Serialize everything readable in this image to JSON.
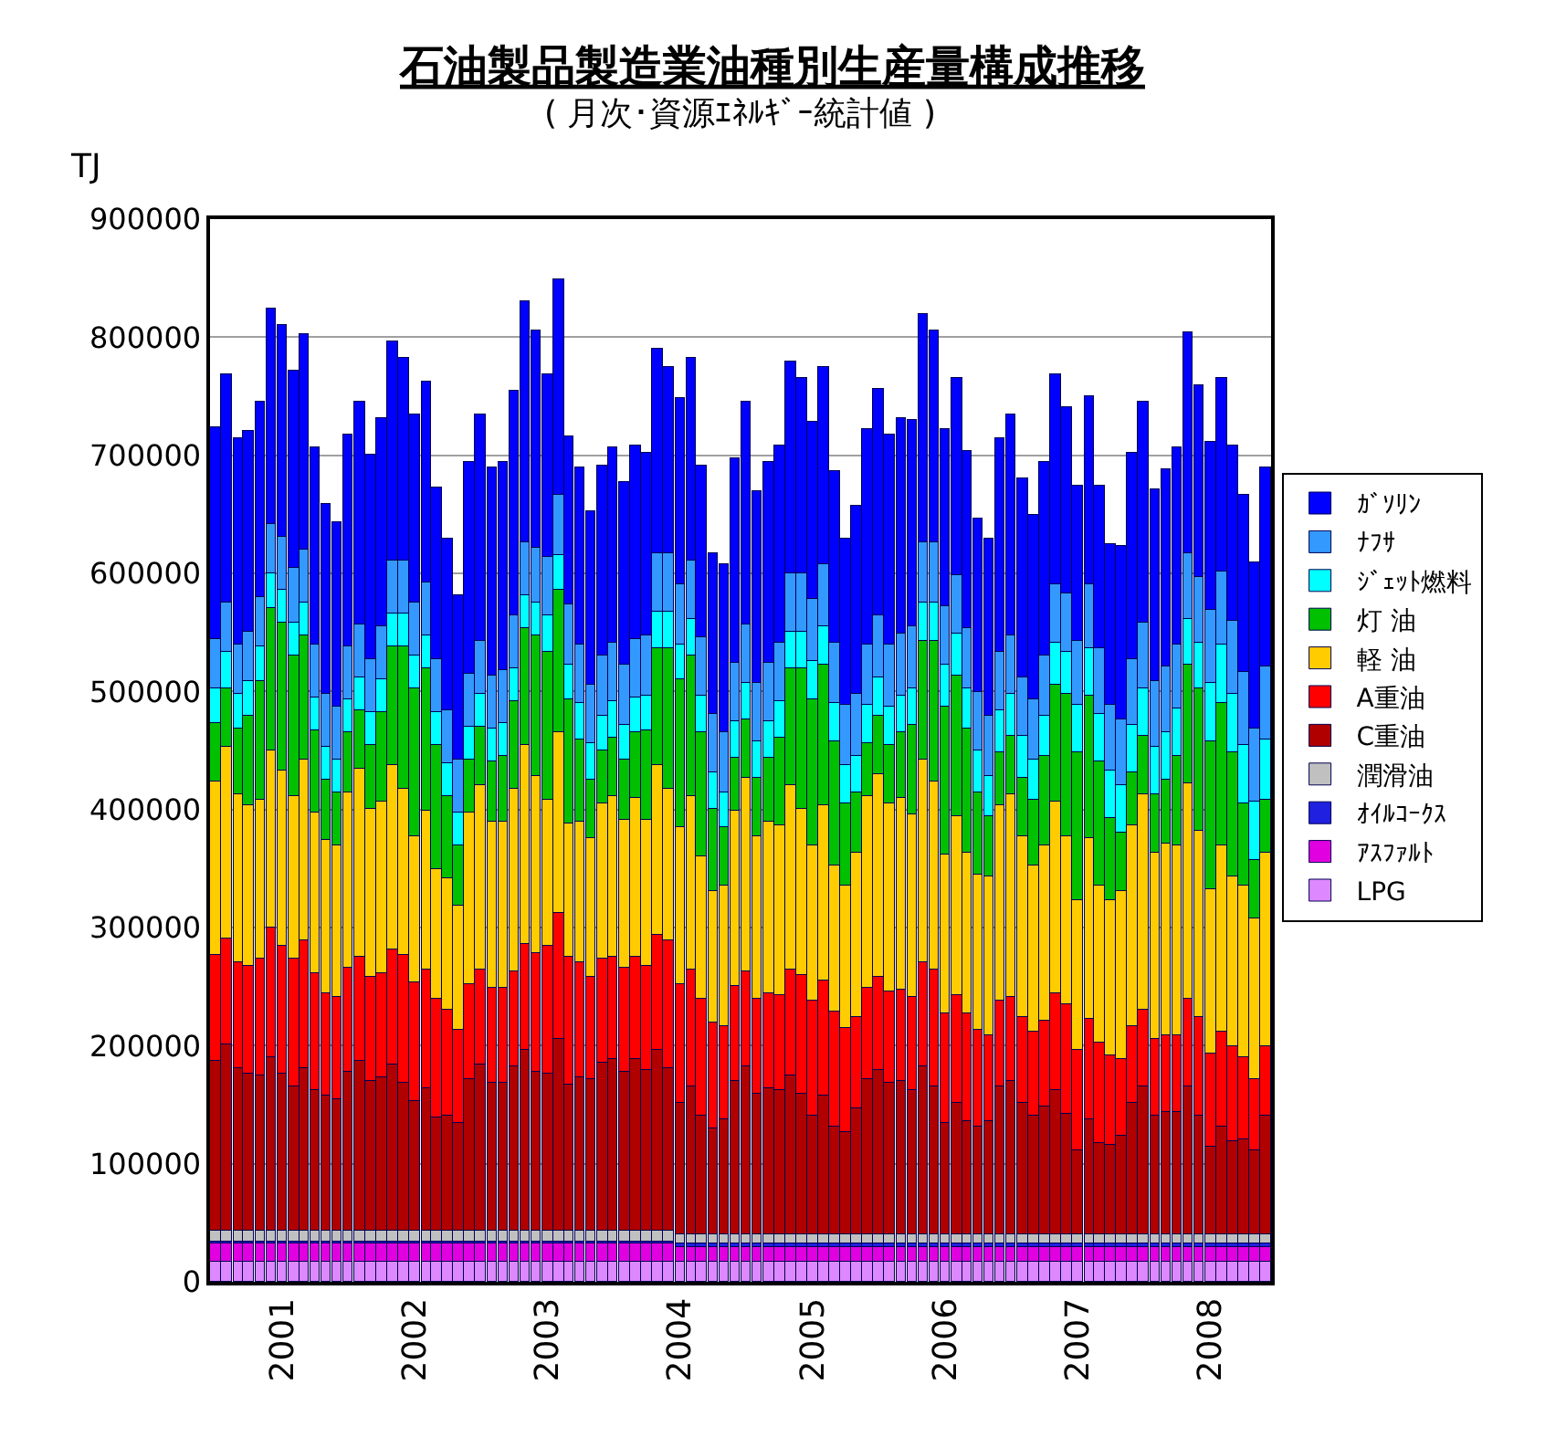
{
  "chart_data": {
    "type": "bar",
    "title": "石油製品製造業油種別生産量構成推移",
    "subtitle": "( 月次･資源ｴﾈﾙｷﾞｰ統計値 )",
    "ylabel": "TJ",
    "stacked": true,
    "legend": "right",
    "grid": "y",
    "x": [
      "2000-07",
      "2000-08",
      "2000-09",
      "2000-10",
      "2000-11",
      "2000-12",
      "2001-01",
      "2001-02",
      "2001-03",
      "2001-04",
      "2001-05",
      "2001-06",
      "2001-07",
      "2001-08",
      "2001-09",
      "2001-10",
      "2001-11",
      "2001-12",
      "2002-01",
      "2002-02",
      "2002-03",
      "2002-04",
      "2002-05",
      "2002-06",
      "2002-07",
      "2002-08",
      "2002-09",
      "2002-10",
      "2002-11",
      "2002-12",
      "2003-01",
      "2003-02",
      "2003-03",
      "2003-04",
      "2003-05",
      "2003-06",
      "2003-07",
      "2003-08",
      "2003-09",
      "2003-10",
      "2003-11",
      "2003-12",
      "2004-01",
      "2004-02",
      "2004-03",
      "2004-04",
      "2004-05",
      "2004-06",
      "2004-07",
      "2004-08",
      "2004-09",
      "2004-10",
      "2004-11",
      "2004-12",
      "2005-01",
      "2005-02",
      "2005-03",
      "2005-04",
      "2005-05",
      "2005-06",
      "2005-07",
      "2005-08",
      "2005-09",
      "2005-10",
      "2005-11",
      "2005-12",
      "2006-01",
      "2006-02",
      "2006-03",
      "2006-04",
      "2006-05",
      "2006-06",
      "2006-07",
      "2006-08",
      "2006-09",
      "2006-10",
      "2006-11",
      "2006-12",
      "2007-01",
      "2007-02",
      "2007-03",
      "2007-04",
      "2007-05",
      "2007-06",
      "2007-07",
      "2007-08",
      "2007-09",
      "2007-10",
      "2007-11",
      "2007-12",
      "2008-01",
      "2008-02",
      "2008-03",
      "2008-04",
      "2008-05",
      "2008-06"
    ],
    "xlim": [
      "2000-06-16",
      "2008-06-16"
    ],
    "xticks": [
      {
        "value": "2001-01",
        "label": "2001"
      },
      {
        "value": "2002-01",
        "label": "2002"
      },
      {
        "value": "2003-01",
        "label": "2003"
      },
      {
        "value": "2004-01",
        "label": "2004"
      },
      {
        "value": "2005-01",
        "label": "2005"
      },
      {
        "value": "2006-01",
        "label": "2006"
      },
      {
        "value": "2007-01",
        "label": "2007"
      },
      {
        "value": "2008-01",
        "label": "2008"
      }
    ],
    "ylim": [
      0,
      900000
    ],
    "yticks": [
      0,
      100000,
      200000,
      300000,
      400000,
      500000,
      600000,
      700000,
      800000,
      900000
    ],
    "series": [
      {
        "name": "LPG",
        "color": "#dd88ff",
        "values": [
          17000,
          17000,
          17000,
          17000,
          17000,
          17000,
          17000,
          17000,
          17000,
          17000,
          17000,
          17000,
          17000,
          17000,
          17000,
          17000,
          17000,
          17000,
          17000,
          17000,
          17000,
          17000,
          17000,
          17000,
          17000,
          17000,
          17000,
          17000,
          17000,
          17000,
          17000,
          17000,
          17000,
          17000,
          17000,
          17000,
          17000,
          17000,
          17000,
          17000,
          17000,
          17000,
          17000,
          17000,
          17000,
          17000,
          17000,
          17000,
          17000,
          17000,
          17000,
          17000,
          17000,
          17000,
          17000,
          17000,
          17000,
          17000,
          17000,
          17000,
          17000,
          17000,
          17000,
          17000,
          17000,
          17000,
          17000,
          17000,
          17000,
          17000,
          17000,
          17000,
          17000,
          17000,
          17000,
          17000,
          17000,
          17000,
          17000,
          17000,
          17000,
          17000,
          17000,
          17000,
          17000,
          17000,
          17000,
          17000,
          17000,
          17000,
          17000,
          17000,
          17000,
          17000,
          17000,
          17000
        ]
      },
      {
        "name": "ｱｽﾌｧﾙﾄ",
        "color": "#e000e0",
        "values": [
          15000,
          15000,
          15000,
          15000,
          15000,
          15000,
          15000,
          15000,
          15000,
          15000,
          15000,
          15000,
          15000,
          15000,
          15000,
          15000,
          15000,
          15000,
          15000,
          15000,
          15000,
          15000,
          15000,
          15000,
          15000,
          15000,
          15000,
          15000,
          15000,
          15000,
          15000,
          15000,
          15000,
          15000,
          15000,
          15000,
          15000,
          15000,
          15000,
          15000,
          15000,
          15000,
          13000,
          13000,
          13000,
          13000,
          13000,
          13000,
          13000,
          13000,
          13000,
          13000,
          13000,
          13000,
          13000,
          13000,
          13000,
          13000,
          13000,
          13000,
          13000,
          13000,
          13000,
          13000,
          13000,
          13000,
          13000,
          13000,
          13000,
          13000,
          13000,
          13000,
          13000,
          13000,
          13000,
          13000,
          13000,
          13000,
          13000,
          13000,
          13000,
          13000,
          13000,
          13000,
          13000,
          13000,
          13000,
          13000,
          13000,
          13000,
          13000,
          13000,
          13000,
          13000,
          13000,
          13000
        ]
      },
      {
        "name": "ｵｲﾙｺｰｸｽ",
        "color": "#2020e0",
        "values": [
          2000,
          2000,
          2000,
          2000,
          2000,
          2000,
          2000,
          2000,
          2000,
          2000,
          2000,
          2000,
          2000,
          2000,
          2000,
          2000,
          2000,
          2000,
          2000,
          2000,
          2000,
          2000,
          2000,
          2000,
          2000,
          2000,
          2000,
          2000,
          2000,
          2000,
          2000,
          2000,
          2000,
          2000,
          2000,
          2000,
          2000,
          2000,
          2000,
          2000,
          2000,
          2000,
          2000,
          2000,
          2000,
          2000,
          2000,
          2000,
          2000,
          2000,
          2000,
          2000,
          2000,
          2000,
          2000,
          2000,
          2000,
          2000,
          2000,
          2000,
          2000,
          2000,
          2000,
          2000,
          2000,
          2000,
          2000,
          2000,
          2000,
          2000,
          2000,
          2000,
          2000,
          2000,
          2000,
          2000,
          2000,
          2000,
          2000,
          2000,
          2000,
          2000,
          2000,
          2000,
          2000,
          2000,
          2000,
          2000,
          2000,
          2000,
          2000,
          2000,
          2000,
          2000,
          2000,
          2000
        ]
      },
      {
        "name": "潤滑油",
        "color": "#c0c0c0",
        "values": [
          9000,
          9000,
          9000,
          9000,
          9000,
          9000,
          9000,
          9000,
          9000,
          9000,
          9000,
          9000,
          9000,
          9000,
          9000,
          9000,
          9000,
          9000,
          9000,
          9000,
          9000,
          9000,
          9000,
          9000,
          9000,
          9000,
          9000,
          9000,
          9000,
          9000,
          9000,
          9000,
          9000,
          9000,
          9000,
          9000,
          9000,
          9000,
          9000,
          9000,
          9000,
          9000,
          8000,
          8000,
          8000,
          8000,
          8000,
          8000,
          8000,
          8000,
          8000,
          8000,
          8000,
          8000,
          8000,
          8000,
          8000,
          8000,
          8000,
          8000,
          8000,
          8000,
          8000,
          8000,
          8000,
          8000,
          8000,
          8000,
          8000,
          8000,
          8000,
          8000,
          8000,
          8000,
          8000,
          8000,
          8000,
          8000,
          8000,
          8000,
          8000,
          8000,
          8000,
          8000,
          8000,
          8000,
          8000,
          8000,
          8000,
          8000,
          8000,
          8000,
          8000,
          8000,
          8000,
          8000
        ]
      },
      {
        "name": "C重油",
        "color": "#b00000",
        "values": [
          144000,
          158000,
          138000,
          134000,
          131000,
          147000,
          133000,
          123000,
          138000,
          120000,
          114000,
          111000,
          135000,
          144000,
          127000,
          130000,
          141000,
          126000,
          110000,
          121000,
          96000,
          97000,
          91000,
          129000,
          141000,
          126000,
          126000,
          140000,
          153000,
          135000,
          134000,
          162000,
          124000,
          130000,
          128000,
          142000,
          145000,
          135000,
          145000,
          136000,
          153000,
          138000,
          112000,
          125000,
          100000,
          90000,
          97000,
          130000,
          143000,
          119000,
          124000,
          123000,
          135000,
          120000,
          100000,
          117000,
          91000,
          87000,
          107000,
          131000,
          140000,
          128000,
          130000,
          123000,
          142000,
          126000,
          95000,
          111000,
          96000,
          91000,
          96000,
          126000,
          130000,
          112000,
          100000,
          109000,
          122000,
          103000,
          71000,
          97000,
          77000,
          76000,
          84000,
          112000,
          125000,
          100000,
          104000,
          104000,
          125000,
          100000,
          74000,
          92000,
          79000,
          80000,
          71000,
          100000
        ]
      },
      {
        "name": "A重油",
        "color": "#ff0000",
        "values": [
          90000,
          90000,
          90000,
          90000,
          100000,
          110000,
          108000,
          108000,
          108000,
          98000,
          88000,
          88000,
          88000,
          88000,
          88000,
          88000,
          98000,
          108000,
          100000,
          100000,
          100000,
          90000,
          80000,
          80000,
          80000,
          80000,
          80000,
          80000,
          90000,
          100000,
          108000,
          108000,
          108000,
          98000,
          88000,
          88000,
          88000,
          88000,
          88000,
          88000,
          98000,
          108000,
          100000,
          100000,
          100000,
          90000,
          80000,
          80000,
          80000,
          80000,
          80000,
          80000,
          90000,
          100000,
          98000,
          98000,
          98000,
          88000,
          78000,
          78000,
          78000,
          78000,
          78000,
          78000,
          88000,
          98000,
          92000,
          92000,
          92000,
          82000,
          72000,
          72000,
          72000,
          72000,
          72000,
          72000,
          82000,
          92000,
          85000,
          85000,
          85000,
          75000,
          65000,
          65000,
          65000,
          65000,
          65000,
          65000,
          75000,
          85000,
          80000,
          80000,
          80000,
          70000,
          60000,
          60000
        ]
      },
      {
        "name": "軽 油",
        "color": "#ffcc00",
        "values": [
          146000,
          162000,
          142000,
          137000,
          134000,
          150000,
          149000,
          137000,
          153000,
          136000,
          130000,
          127000,
          149000,
          159000,
          142000,
          146000,
          156000,
          141000,
          124000,
          135000,
          110000,
          111000,
          105000,
          145000,
          156000,
          141000,
          141000,
          154000,
          168000,
          150000,
          124000,
          153000,
          113000,
          119000,
          117000,
          132000,
          135000,
          126000,
          134000,
          125000,
          143000,
          128000,
          133000,
          146000,
          121000,
          111000,
          118000,
          149000,
          164000,
          138000,
          145000,
          143000,
          155000,
          140000,
          131000,
          148000,
          124000,
          120000,
          139000,
          162000,
          172000,
          159000,
          162000,
          155000,
          173000,
          159000,
          135000,
          151000,
          135000,
          132000,
          136000,
          166000,
          171000,
          153000,
          141000,
          149000,
          162000,
          143000,
          127000,
          154000,
          134000,
          132000,
          142000,
          170000,
          183000,
          158000,
          162000,
          161000,
          182000,
          157000,
          138000,
          158000,
          144000,
          145000,
          136000,
          164000
        ]
      },
      {
        "name": "灯 油",
        "color": "#00c000",
        "values": [
          50000,
          50000,
          55000,
          75000,
          100000,
          120000,
          125000,
          120000,
          105000,
          70000,
          50000,
          45000,
          50000,
          50000,
          55000,
          75000,
          100000,
          120000,
          125000,
          120000,
          105000,
          70000,
          50000,
          45000,
          50000,
          50000,
          55000,
          75000,
          100000,
          120000,
          125000,
          120000,
          105000,
          70000,
          50000,
          45000,
          50000,
          50000,
          55000,
          75000,
          100000,
          120000,
          125000,
          120000,
          105000,
          70000,
          50000,
          45000,
          50000,
          50000,
          55000,
          75000,
          100000,
          120000,
          125000,
          120000,
          105000,
          70000,
          50000,
          45000,
          50000,
          50000,
          55000,
          75000,
          100000,
          120000,
          125000,
          120000,
          105000,
          70000,
          50000,
          45000,
          50000,
          50000,
          55000,
          75000,
          100000,
          120000,
          125000,
          120000,
          105000,
          70000,
          50000,
          45000,
          50000,
          50000,
          55000,
          75000,
          100000,
          120000,
          125000,
          120000,
          105000,
          70000,
          50000,
          45000
        ]
      },
      {
        "name": "ｼﾞｪｯﾄ燃料",
        "color": "#00ffff",
        "values": [
          30000,
          30000,
          30000,
          30000,
          30000,
          30000,
          28000,
          28000,
          28000,
          28000,
          28000,
          28000,
          28000,
          28000,
          28000,
          28000,
          28000,
          28000,
          28000,
          28000,
          28000,
          28000,
          28000,
          28000,
          28000,
          28000,
          28000,
          28000,
          28000,
          28000,
          30000,
          30000,
          30000,
          30000,
          30000,
          30000,
          30000,
          30000,
          30000,
          30000,
          30000,
          30000,
          30000,
          30000,
          30000,
          30000,
          30000,
          30000,
          30000,
          30000,
          30000,
          30000,
          30000,
          30000,
          32000,
          32000,
          32000,
          32000,
          32000,
          32000,
          32000,
          32000,
          32000,
          32000,
          32000,
          32000,
          35000,
          35000,
          35000,
          35000,
          35000,
          35000,
          35000,
          35000,
          35000,
          35000,
          35000,
          35000,
          40000,
          40000,
          40000,
          40000,
          40000,
          40000,
          40000,
          40000,
          40000,
          40000,
          40000,
          40000,
          50000,
          50000,
          50000,
          50000,
          50000,
          50000
        ]
      },
      {
        "name": "ﾅﾌｻ",
        "color": "#3399ff",
        "values": [
          42000,
          42000,
          42000,
          42000,
          42000,
          42000,
          45000,
          45000,
          45000,
          45000,
          45000,
          45000,
          45000,
          45000,
          45000,
          45000,
          45000,
          45000,
          45000,
          45000,
          45000,
          45000,
          45000,
          45000,
          45000,
          45000,
          45000,
          45000,
          45000,
          45000,
          50000,
          50000,
          50000,
          50000,
          50000,
          50000,
          50000,
          50000,
          50000,
          50000,
          50000,
          50000,
          50000,
          50000,
          50000,
          50000,
          50000,
          50000,
          50000,
          50000,
          50000,
          50000,
          50000,
          50000,
          52000,
          52000,
          52000,
          52000,
          52000,
          52000,
          52000,
          52000,
          52000,
          52000,
          52000,
          52000,
          50000,
          50000,
          50000,
          50000,
          50000,
          50000,
          50000,
          50000,
          50000,
          50000,
          50000,
          50000,
          55000,
          55000,
          55000,
          55000,
          55000,
          55000,
          55000,
          55000,
          55000,
          55000,
          55000,
          55000,
          62000,
          62000,
          62000,
          62000,
          62000,
          62000
        ]
      },
      {
        "name": "ｶﾞｿﾘﾝ",
        "color": "#0000ff",
        "values": [
          178000,
          194000,
          174000,
          169000,
          166000,
          182000,
          179000,
          167000,
          183000,
          166000,
          160000,
          157000,
          179000,
          189000,
          172000,
          176000,
          186000,
          171000,
          159000,
          170000,
          145000,
          146000,
          140000,
          180000,
          191000,
          176000,
          176000,
          189000,
          203000,
          185000,
          154000,
          183000,
          143000,
          149000,
          147000,
          162000,
          165000,
          156000,
          164000,
          155000,
          173000,
          158000,
          158000,
          171000,
          146000,
          136000,
          143000,
          174000,
          189000,
          163000,
          170000,
          168000,
          180000,
          165000,
          151000,
          168000,
          144000,
          140000,
          159000,
          182000,
          192000,
          179000,
          182000,
          175000,
          193000,
          179000,
          150000,
          166000,
          150000,
          147000,
          151000,
          181000,
          186000,
          168000,
          156000,
          164000,
          177000,
          158000,
          132000,
          159000,
          139000,
          137000,
          147000,
          175000,
          188000,
          163000,
          167000,
          166000,
          187000,
          162000,
          143000,
          163000,
          149000,
          150000,
          141000,
          169000
        ]
      }
    ]
  }
}
